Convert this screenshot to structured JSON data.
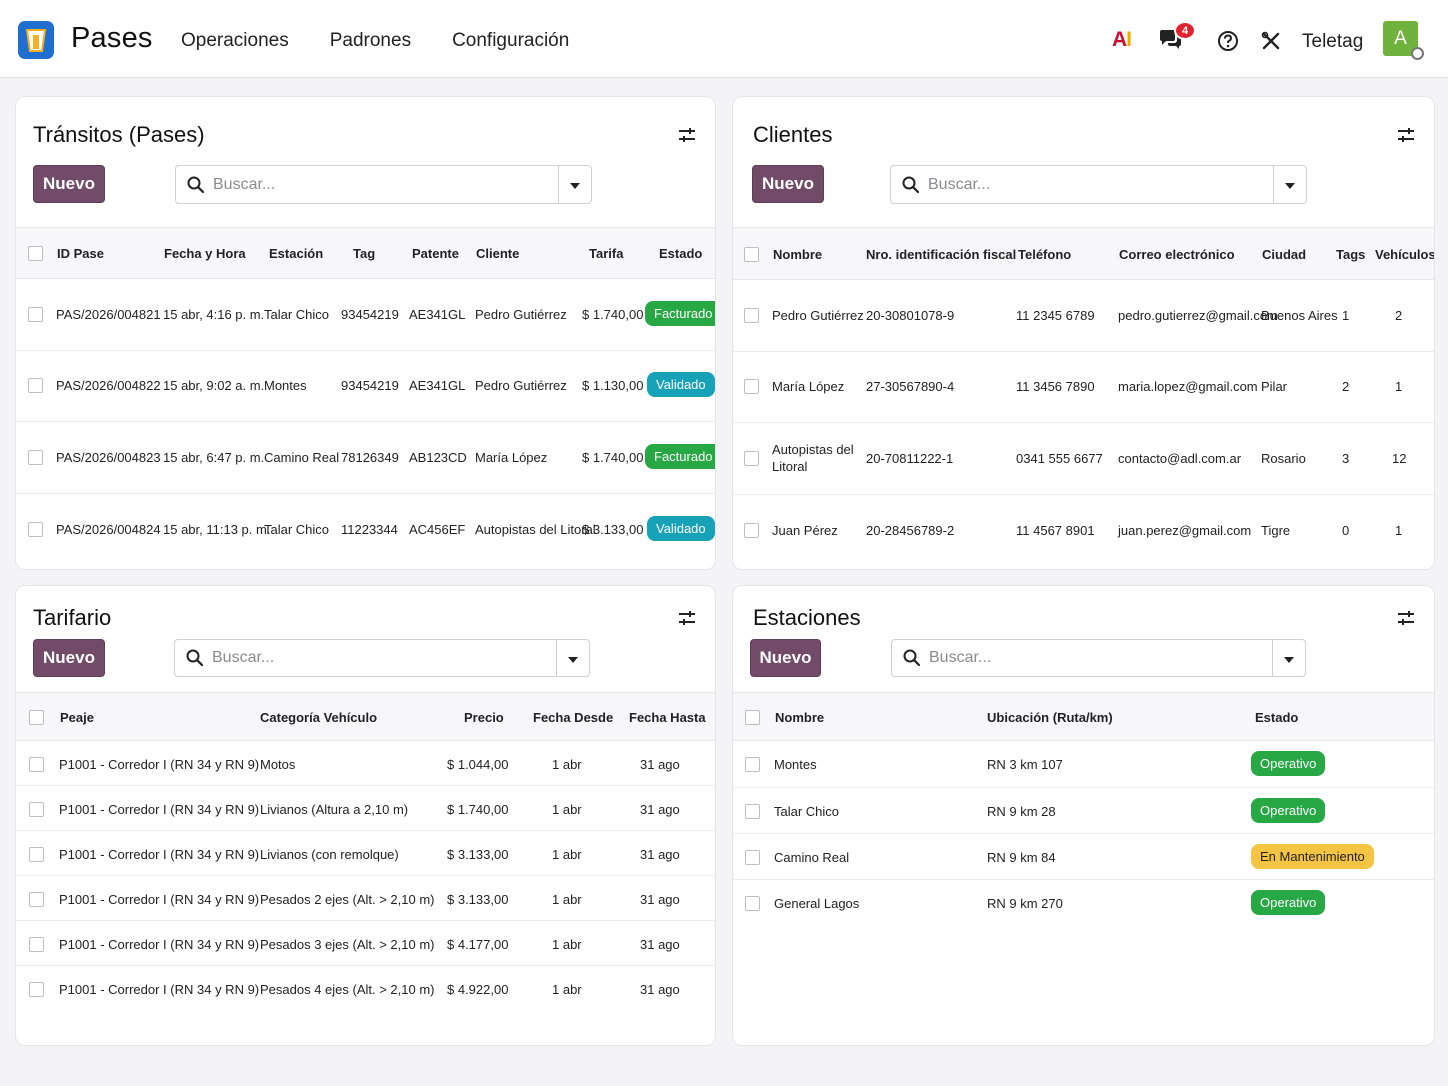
{
  "app": {
    "name": "Pases",
    "menu": [
      "Operaciones",
      "Padrones",
      "Configuración"
    ],
    "notifications_count": "4",
    "company": "Teletag",
    "avatar_letter": "A",
    "ai_label": {
      "a": "A",
      "i": "I"
    }
  },
  "transitos": {
    "title": "Tránsitos (Pases)",
    "new_label": "Nuevo",
    "search_placeholder": "Buscar...",
    "columns": [
      "ID Pase",
      "Fecha y Hora",
      "Estación",
      "Tag",
      "Patente",
      "Cliente",
      "Tarifa",
      "Estado"
    ],
    "rows": [
      [
        "PAS/2026/004821",
        "15 abr, 4:16 p. m.",
        "Talar Chico",
        "93454219",
        "AE341GL",
        "Pedro Gutiérrez",
        "$ 1.740,00",
        "Facturado"
      ],
      [
        "PAS/2026/004822",
        "15 abr, 9:02 a. m.",
        "Montes",
        "93454219",
        "AE341GL",
        "Pedro Gutiérrez",
        "$ 1.130,00",
        "Validado"
      ],
      [
        "PAS/2026/004823",
        "15 abr, 6:47 p. m.",
        "Camino Real",
        "78126349",
        "AB123CD",
        "María López",
        "$ 1.740,00",
        "Facturado"
      ],
      [
        "PAS/2026/004824",
        "15 abr, 11:13 p. m.",
        "Talar Chico",
        "11223344",
        "AC456EF",
        "Autopistas del Litoral",
        "$ 3.133,00",
        "Validado"
      ]
    ]
  },
  "clientes": {
    "title": "Clientes",
    "new_label": "Nuevo",
    "search_placeholder": "Buscar...",
    "columns": [
      "Nombre",
      "Nro. identificación fiscal",
      "Teléfono",
      "Correo electrónico",
      "Ciudad",
      "Tags",
      "Vehículos"
    ],
    "rows": [
      [
        "Pedro Gutiérrez",
        "20-30801078-9",
        "11 2345 6789",
        "pedro.gutierrez@gmail.com",
        "Buenos Aires",
        "1",
        "2"
      ],
      [
        "María López",
        "27-30567890-4",
        "11 3456 7890",
        "maria.lopez@gmail.com",
        "Pilar",
        "2",
        "1"
      ],
      [
        "Autopistas del Litoral",
        "20-70811222-1",
        "0341 555 6677",
        "contacto@adl.com.ar",
        "Rosario",
        "3",
        "12"
      ],
      [
        "Juan Pérez",
        "20-28456789-2",
        "11 4567 8901",
        "juan.perez@gmail.com",
        "Tigre",
        "0",
        "1"
      ]
    ]
  },
  "tarifario": {
    "title": "Tarifario",
    "new_label": "Nuevo",
    "search_placeholder": "Buscar...",
    "columns": [
      "Peaje",
      "Categoría Vehículo",
      "Precio",
      "Fecha Desde",
      "Fecha Hasta"
    ],
    "rows": [
      [
        "P1001 - Corredor I (RN 34 y RN 9)",
        "Motos",
        "$ 1.044,00",
        "1 abr",
        "31 ago"
      ],
      [
        "P1001 - Corredor I (RN 34 y RN 9)",
        "Livianos (Altura a 2,10 m)",
        "$ 1.740,00",
        "1 abr",
        "31 ago"
      ],
      [
        "P1001 - Corredor I (RN 34 y RN 9)",
        "Livianos (con remolque)",
        "$ 3.133,00",
        "1 abr",
        "31 ago"
      ],
      [
        "P1001 - Corredor I (RN 34 y RN 9)",
        "Pesados 2 ejes (Alt. > 2,10 m)",
        "$ 3.133,00",
        "1 abr",
        "31 ago"
      ],
      [
        "P1001 - Corredor I (RN 34 y RN 9)",
        "Pesados 3 ejes (Alt. > 2,10 m)",
        "$ 4.177,00",
        "1 abr",
        "31 ago"
      ],
      [
        "P1001 - Corredor I (RN 34 y RN 9)",
        "Pesados 4 ejes (Alt. > 2,10 m)",
        "$ 4.922,00",
        "1 abr",
        "31 ago"
      ]
    ]
  },
  "estaciones": {
    "title": "Estaciones",
    "new_label": "Nuevo",
    "search_placeholder": "Buscar...",
    "columns": [
      "Nombre",
      "Ubicación (Ruta/km)",
      "Estado"
    ],
    "rows": [
      [
        "Montes",
        "RN 3 km 107",
        "Operativo"
      ],
      [
        "Talar Chico",
        "RN 9 km 28",
        "Operativo"
      ],
      [
        "Camino Real",
        "RN 9 km 84",
        "En Mantenimiento"
      ],
      [
        "General Lagos",
        "RN 9 km 270",
        "Operativo"
      ]
    ]
  },
  "colors": {
    "brand": "#714b67",
    "logo": "#1f6fd1",
    "status_green": "#28a745",
    "status_blue": "#17a2b8",
    "status_yellow": "#f5c443"
  }
}
